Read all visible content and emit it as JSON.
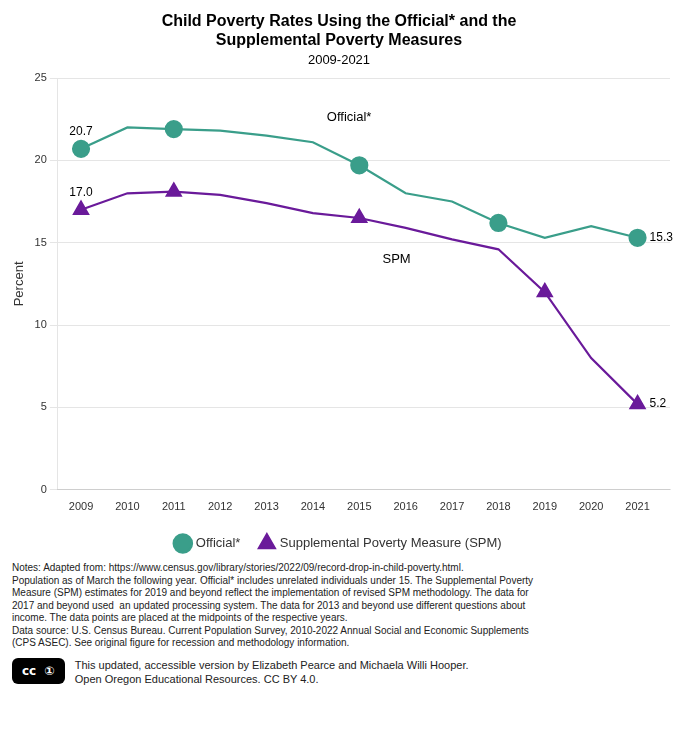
{
  "chart_data": {
    "type": "line",
    "title": [
      "Child Poverty Rates Using the Official* and the",
      "Supplemental Poverty Measures"
    ],
    "subtitle": "2009-2021",
    "ylabel": "Percent",
    "x": [
      2009,
      2010,
      2011,
      2012,
      2013,
      2014,
      2015,
      2016,
      2017,
      2018,
      2019,
      2020,
      2021
    ],
    "xlim": [
      2008.5,
      2021.7
    ],
    "xticks": [
      2009,
      2010,
      2011,
      2012,
      2013,
      2014,
      2015,
      2016,
      2017,
      2018,
      2019,
      2020,
      2021
    ],
    "ylim": [
      0,
      25
    ],
    "yticks": [
      0,
      5,
      10,
      15,
      20,
      25
    ],
    "grid": "y",
    "legend": "bottom",
    "series": [
      {
        "name": "Official*",
        "color": "#3a9e8a",
        "values": [
          20.7,
          22.0,
          21.9,
          21.8,
          21.5,
          21.1,
          19.7,
          18.0,
          17.5,
          16.2,
          15.3,
          16.0,
          15.3
        ],
        "marker": "circle",
        "marker_x": [
          2009,
          2011,
          2015,
          2018,
          2021
        ]
      },
      {
        "name": "Supplemental Poverty Measure (SPM)",
        "color": "#6a1a9a",
        "values": [
          17.0,
          18.0,
          18.1,
          17.9,
          17.4,
          16.8,
          16.5,
          15.9,
          15.2,
          14.6,
          12.0,
          8.0,
          5.2
        ],
        "marker": "triangle",
        "marker_x": [
          2009,
          2011,
          2015,
          2019,
          2021
        ]
      }
    ],
    "annotations": [
      {
        "text": "20.7",
        "x": 2009,
        "y": 20.7
      },
      {
        "text": "17.0",
        "x": 2009,
        "y": 17.0
      },
      {
        "text": "15.3",
        "x": 2021,
        "y": 15.3
      },
      {
        "text": "5.2",
        "x": 2021,
        "y": 5.2
      },
      {
        "text": "Official*",
        "x": 2014.3,
        "y": 22.6
      },
      {
        "text": "SPM",
        "x": 2015.5,
        "y": 14.0
      }
    ],
    "notes": "Notes: Adapted from: https://www.census.gov/library/stories/2022/09/record-drop-in-child-poverty.html.\nPopulation as of March the following year. Official* includes unrelated individuals under 15. The Supplemental Poverty\nMeasure (SPM) estimates for 2019 and beyond reflect the implementation of revised SPM methodology. The data for\n2017 and beyond used  an updated processing system. The data for 2013 and beyond use different questions about\nincome. The data points are placed at the midpoints of the respective years.\nData source: U.S. Census Bureau. Current Population Survey, 2010-2022 Annual Social and Economic Supplements\n(CPS ASEC). See original figure for recession and methodology information.",
    "credit_badge": "cc  ①",
    "credit": "This updated, accessible version by Elizabeth Pearce and Michaela Willi Hooper.\nOpen Oregon Educational Resources. CC BY 4.0."
  }
}
